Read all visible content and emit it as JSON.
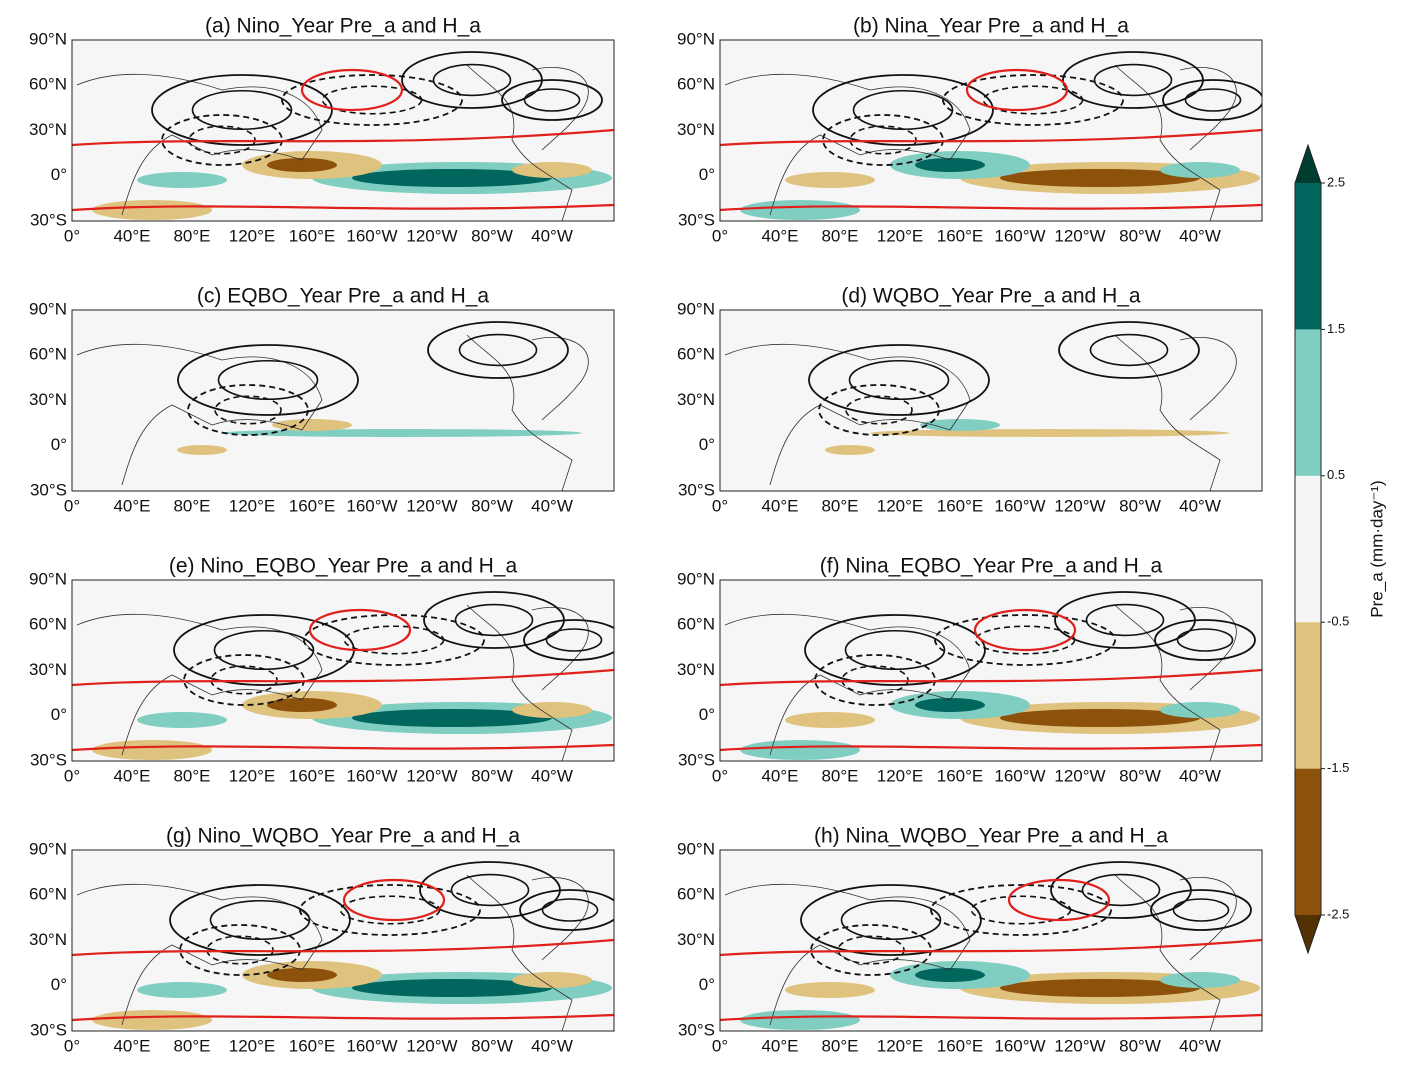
{
  "panels": [
    {
      "title": "(a) Nino_Year Pre_a and H_a"
    },
    {
      "title": "(b) Nina_Year Pre_a and H_a"
    },
    {
      "title": "(c) EQBO_Year Pre_a and H_a"
    },
    {
      "title": "(d) WQBO_Year Pre_a and H_a"
    },
    {
      "title": "(e) Nino_EQBO_Year Pre_a and H_a"
    },
    {
      "title": "(f) Nina_EQBO_Year Pre_a and H_a"
    },
    {
      "title": "(g) Nino_WQBO_Year Pre_a and H_a"
    },
    {
      "title": "(h) Nina_WQBO_Year Pre_a and H_a"
    }
  ],
  "axes": {
    "y_labels": [
      "90°N",
      "60°N",
      "30°N",
      "0°",
      "30°S"
    ],
    "x_labels": [
      "0°",
      "40°E",
      "80°E",
      "120°E",
      "160°E",
      "160°W",
      "120°W",
      "80°W",
      "40°W"
    ]
  },
  "colorbar": {
    "label": "Pre_a (mm·day⁻¹)",
    "lim": [
      -2.5,
      2.5
    ],
    "ticks": [
      2.5,
      1.5,
      0.5,
      -0.5,
      -1.5,
      -2.5
    ],
    "colors": [
      "#8c510a",
      "#dfc27d",
      "#f5f5f5",
      "#80cdc1",
      "#01665e"
    ],
    "extend_colors": [
      "#543005",
      "#003c30"
    ]
  }
}
